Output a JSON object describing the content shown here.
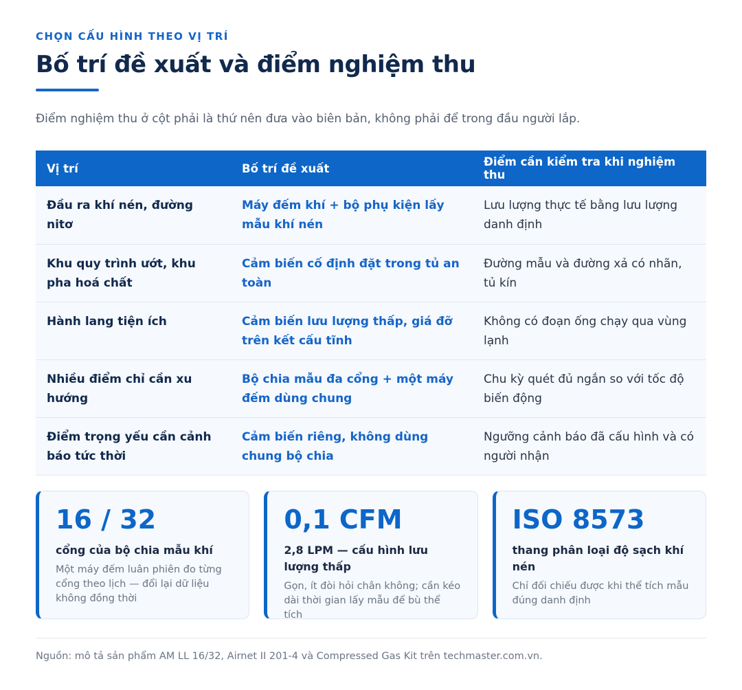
{
  "header": {
    "eyebrow": "CHỌN CẤU HÌNH THEO VỊ TRÍ",
    "title": "Bố trí đề xuất và điểm nghiệm thu",
    "intro": "Điểm nghiệm thu ở cột phải là thứ nên đưa vào biên bản, không phải để trong đầu người lắp."
  },
  "table": {
    "headers": [
      "Vị trí",
      "Bố trí đề xuất",
      "Điểm cần kiểm tra khi nghiệm thu"
    ],
    "rows": [
      [
        "Đầu ra khí nén, đường nitơ",
        "Máy đếm khí + bộ phụ kiện lấy mẫu khí nén",
        "Lưu lượng thực tế bằng lưu lượng danh định"
      ],
      [
        "Khu quy trình ướt, khu pha hoá chất",
        "Cảm biến cố định đặt trong tủ an toàn",
        "Đường mẫu và đường xả có nhãn, tủ kín"
      ],
      [
        "Hành lang tiện ích",
        "Cảm biến lưu lượng thấp, giá đỡ trên kết cấu tĩnh",
        "Không có đoạn ống chạy qua vùng lạnh"
      ],
      [
        "Nhiều điểm chỉ cần xu hướng",
        "Bộ chia mẫu đa cổng + một máy đếm dùng chung",
        "Chu kỳ quét đủ ngắn so với tốc độ biến động"
      ],
      [
        "Điểm trọng yếu cần cảnh báo tức thời",
        "Cảm biến riêng, không dùng chung bộ chia",
        "Ngưỡng cảnh báo đã cấu hình và có người nhận"
      ]
    ]
  },
  "cards": [
    {
      "value": "16 / 32",
      "label": "cổng của bộ chia mẫu khí",
      "note": "Một máy đếm luân phiên đo từng cổng theo lịch — đổi lại dữ liệu không đồng thời"
    },
    {
      "value": "0,1 CFM",
      "label": "2,8 LPM — cấu hình lưu lượng thấp",
      "note": "Gọn, ít đòi hỏi chân không; cần kéo dài thời gian lấy mẫu để bù thể tích"
    },
    {
      "value": "ISO 8573",
      "label": "thang phân loại độ sạch khí nén",
      "note": "Chỉ đối chiếu được khi thể tích mẫu đúng danh định"
    }
  ],
  "footer": {
    "source": "Nguồn: mô tả sản phẩm AM LL 16/32, Airnet II 201-4 và Compressed Gas Kit trên techmaster.com.vn."
  }
}
